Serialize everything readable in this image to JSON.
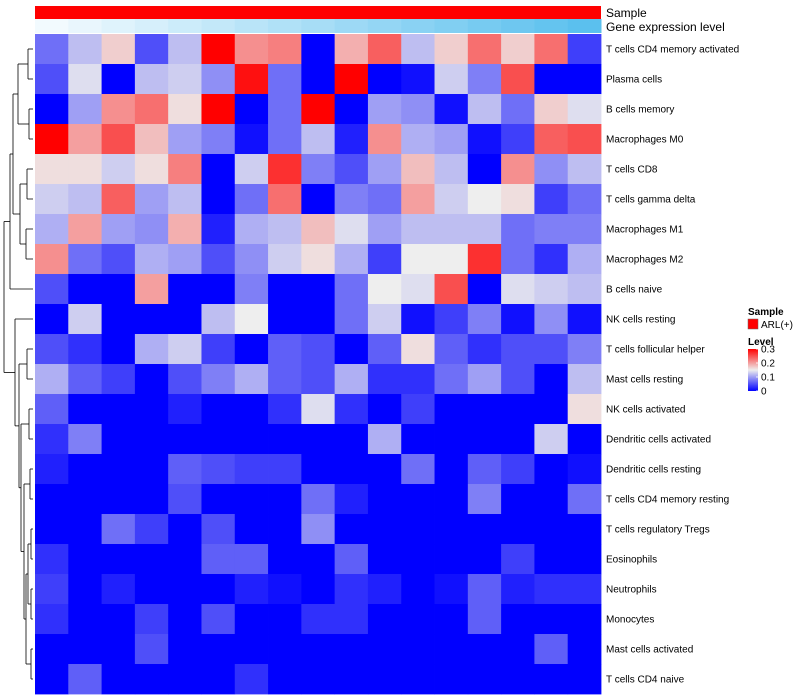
{
  "chart_data": {
    "type": "heatmap",
    "annotations": {
      "sample": {
        "label": "Sample",
        "value": "ARL(+)",
        "color": "#ff0000"
      },
      "gene_expression": {
        "label": "Gene expression level",
        "values": [
          0.0,
          0.05,
          0.1,
          0.15,
          0.2,
          0.25,
          0.3,
          0.35,
          0.4,
          0.45,
          0.5,
          0.55,
          0.6,
          0.65,
          0.7,
          0.75,
          0.8
        ],
        "low_color": "#f2fafe",
        "high_color": "#5bc0ee"
      }
    },
    "rows": [
      "T cells CD4 memory activated",
      "Plasma cells",
      "B cells memory",
      "Macrophages M0",
      "T cells CD8",
      "T cells gamma delta",
      "Macrophages M1",
      "Macrophages M2",
      "B cells naive",
      "NK cells resting",
      "T cells follicular helper",
      "Mast cells resting",
      "NK cells activated",
      "Dendritic cells activated",
      "Dendritic cells resting",
      "T cells CD4 memory resting",
      "T cells regulatory  Tregs",
      "Eosinophils",
      "Neutrophils",
      "Monocytes",
      "Mast cells activated",
      "T cells CD4 naive"
    ],
    "values": [
      [
        0.07,
        0.12,
        0.17,
        0.05,
        0.12,
        0.3,
        0.21,
        0.22,
        0.0,
        0.19,
        0.24,
        0.12,
        0.17,
        0.23,
        0.17,
        0.23,
        0.04
      ],
      [
        0.05,
        0.14,
        0.0,
        0.12,
        0.13,
        0.09,
        0.29,
        0.07,
        0.0,
        0.3,
        0.0,
        0.01,
        0.13,
        0.08,
        0.25,
        0.0,
        0.0
      ],
      [
        0.0,
        0.1,
        0.21,
        0.23,
        0.16,
        0.3,
        0.0,
        0.07,
        0.3,
        0.0,
        0.1,
        0.09,
        0.01,
        0.12,
        0.07,
        0.17,
        0.14
      ],
      [
        0.3,
        0.2,
        0.25,
        0.18,
        0.1,
        0.08,
        0.01,
        0.07,
        0.12,
        0.02,
        0.21,
        0.11,
        0.1,
        0.01,
        0.04,
        0.24,
        0.25
      ],
      [
        0.16,
        0.16,
        0.13,
        0.16,
        0.22,
        0.0,
        0.13,
        0.27,
        0.08,
        0.05,
        0.1,
        0.18,
        0.12,
        0.0,
        0.21,
        0.09,
        0.12
      ],
      [
        0.13,
        0.12,
        0.24,
        0.1,
        0.12,
        0.0,
        0.07,
        0.23,
        0.0,
        0.08,
        0.07,
        0.2,
        0.13,
        0.15,
        0.16,
        0.04,
        0.07
      ],
      [
        0.11,
        0.2,
        0.1,
        0.09,
        0.19,
        0.02,
        0.11,
        0.12,
        0.18,
        0.14,
        0.1,
        0.12,
        0.12,
        0.12,
        0.07,
        0.08,
        0.08
      ],
      [
        0.21,
        0.07,
        0.05,
        0.11,
        0.1,
        0.05,
        0.09,
        0.13,
        0.16,
        0.11,
        0.04,
        0.15,
        0.15,
        0.27,
        0.07,
        0.03,
        0.11
      ],
      [
        0.05,
        0.0,
        0.0,
        0.2,
        0.0,
        0.0,
        0.08,
        0.0,
        0.0,
        0.07,
        0.15,
        0.14,
        0.25,
        0.0,
        0.14,
        0.13,
        0.12
      ],
      [
        0.0,
        0.13,
        0.0,
        0.0,
        0.0,
        0.12,
        0.15,
        0.0,
        0.0,
        0.07,
        0.13,
        0.01,
        0.04,
        0.08,
        0.01,
        0.09,
        0.01
      ],
      [
        0.05,
        0.03,
        0.0,
        0.11,
        0.13,
        0.04,
        0.0,
        0.06,
        0.05,
        0.0,
        0.06,
        0.16,
        0.06,
        0.03,
        0.05,
        0.05,
        0.08
      ],
      [
        0.11,
        0.06,
        0.04,
        0.0,
        0.05,
        0.08,
        0.11,
        0.06,
        0.05,
        0.11,
        0.03,
        0.03,
        0.07,
        0.1,
        0.05,
        0.0,
        0.12
      ],
      [
        0.06,
        0.0,
        0.0,
        0.0,
        0.02,
        0.0,
        0.0,
        0.03,
        0.14,
        0.03,
        0.0,
        0.04,
        0.0,
        0.0,
        0.0,
        0.0,
        0.16
      ],
      [
        0.03,
        0.08,
        0.0,
        0.0,
        0.0,
        0.0,
        0.0,
        0.0,
        0.0,
        0.0,
        0.11,
        0.0,
        0.0,
        0.0,
        0.0,
        0.13,
        0.0
      ],
      [
        0.02,
        0.0,
        0.0,
        0.0,
        0.06,
        0.05,
        0.04,
        0.04,
        0.0,
        0.0,
        0.0,
        0.07,
        0.0,
        0.06,
        0.04,
        0.0,
        0.01
      ],
      [
        0.0,
        0.0,
        0.0,
        0.0,
        0.05,
        0.0,
        0.0,
        0.0,
        0.07,
        0.02,
        0.0,
        0.0,
        0.0,
        0.08,
        0.0,
        0.0,
        0.07
      ],
      [
        0.0,
        0.0,
        0.07,
        0.04,
        0.0,
        0.05,
        0.0,
        0.0,
        0.09,
        0.0,
        0.0,
        0.0,
        0.0,
        0.0,
        0.0,
        0.0,
        0.0
      ],
      [
        0.03,
        0.0,
        0.0,
        0.0,
        0.0,
        0.06,
        0.06,
        0.0,
        0.0,
        0.06,
        0.0,
        0.0,
        0.0,
        0.0,
        0.04,
        0.0,
        0.0
      ],
      [
        0.04,
        0.0,
        0.02,
        0.0,
        0.0,
        0.0,
        0.02,
        0.01,
        0.0,
        0.03,
        0.02,
        0.0,
        0.01,
        0.06,
        0.02,
        0.03,
        0.03
      ],
      [
        0.03,
        0.0,
        0.0,
        0.04,
        0.0,
        0.05,
        0.0,
        0.0,
        0.03,
        0.03,
        0.0,
        0.0,
        0.0,
        0.06,
        0.0,
        0.0,
        0.0
      ],
      [
        0.0,
        0.0,
        0.0,
        0.05,
        0.0,
        0.0,
        0.0,
        0.0,
        0.0,
        0.0,
        0.0,
        0.0,
        0.0,
        0.0,
        0.0,
        0.06,
        0.0
      ],
      [
        0.0,
        0.06,
        0.0,
        0.0,
        0.0,
        0.0,
        0.03,
        0.0,
        0.0,
        0.0,
        0.0,
        0.0,
        0.0,
        0.0,
        0.0,
        0.0,
        0.0
      ]
    ],
    "scale": {
      "min": 0,
      "max": 0.3,
      "colors": [
        "#0000ff",
        "#eeeeee",
        "#ff0000"
      ]
    },
    "legend": {
      "position": "right",
      "sample_title": "Sample",
      "sample_label": "ARL(+)",
      "level_title": "Level",
      "level_ticks": [
        "0.3",
        "0.2",
        "0.1",
        "0"
      ],
      "level_tick_values": [
        0.3,
        0.2,
        0.1,
        0
      ]
    },
    "dendrogram": "rows"
  }
}
